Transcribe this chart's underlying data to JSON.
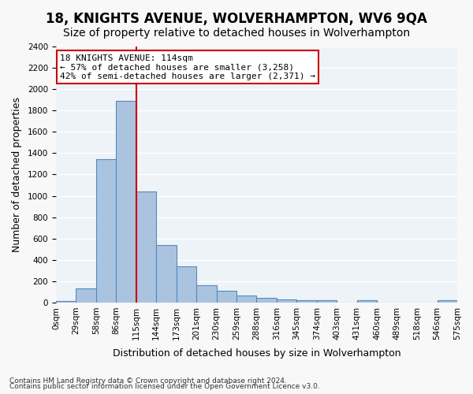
{
  "title": "18, KNIGHTS AVENUE, WOLVERHAMPTON, WV6 9QA",
  "subtitle": "Size of property relative to detached houses in Wolverhampton",
  "xlabel": "Distribution of detached houses by size in Wolverhampton",
  "ylabel": "Number of detached properties",
  "footnote1": "Contains HM Land Registry data © Crown copyright and database right 2024.",
  "footnote2": "Contains public sector information licensed under the Open Government Licence v3.0.",
  "bin_labels": [
    "0sqm",
    "29sqm",
    "58sqm",
    "86sqm",
    "115sqm",
    "144sqm",
    "173sqm",
    "201sqm",
    "230sqm",
    "259sqm",
    "288sqm",
    "316sqm",
    "345sqm",
    "374sqm",
    "403sqm",
    "431sqm",
    "460sqm",
    "489sqm",
    "518sqm",
    "546sqm",
    "575sqm"
  ],
  "bar_values": [
    15,
    130,
    1340,
    1890,
    1040,
    540,
    340,
    165,
    110,
    65,
    40,
    30,
    25,
    20,
    0,
    20,
    0,
    0,
    0,
    20
  ],
  "bar_color": "#aac4e0",
  "bar_edge_color": "#5588bb",
  "background_color": "#eef3f8",
  "grid_color": "#ffffff",
  "property_line_x": 4,
  "property_label": "18 KNIGHTS AVENUE: 114sqm",
  "annotation_line1": "← 57% of detached houses are smaller (3,258)",
  "annotation_line2": "42% of semi-detached houses are larger (2,371) →",
  "annotation_box_color": "#ffffff",
  "annotation_box_edge_color": "#cc0000",
  "vline_color": "#cc0000",
  "ylim": [
    0,
    2400
  ],
  "yticks": [
    0,
    200,
    400,
    600,
    800,
    1000,
    1200,
    1400,
    1600,
    1800,
    2000,
    2200,
    2400
  ],
  "title_fontsize": 12,
  "subtitle_fontsize": 10,
  "ylabel_fontsize": 9,
  "xlabel_fontsize": 9,
  "tick_fontsize": 7.5,
  "annot_fontsize": 8
}
